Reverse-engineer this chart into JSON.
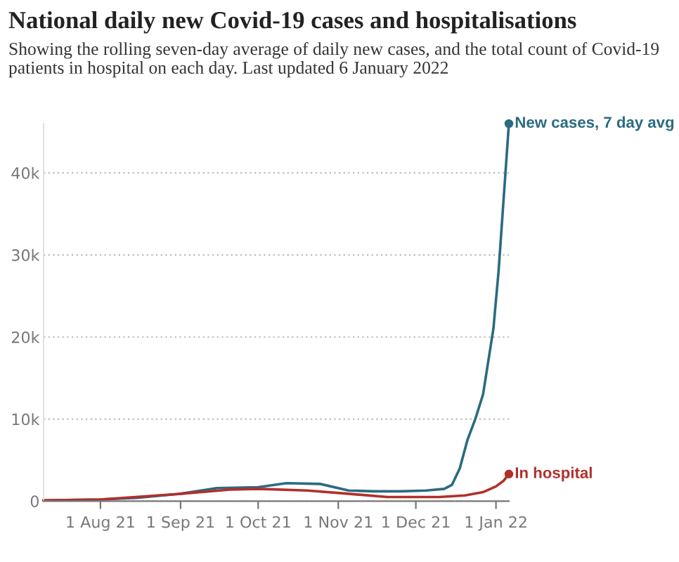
{
  "chart_data": {
    "type": "line",
    "title": "National daily new Covid-19 cases and hospitalisations",
    "subtitle": "Showing the rolling seven-day average of daily new cases, and the total count of Covid-19 patients in hospital on each day. Last updated 6 January 2022",
    "series": [
      {
        "name": "New cases, 7 day avg",
        "color": "#2b6b80",
        "x": [
          "2021-07-10",
          "2021-08-01",
          "2021-08-15",
          "2021-09-01",
          "2021-09-15",
          "2021-10-01",
          "2021-10-12",
          "2021-10-25",
          "2021-11-05",
          "2021-11-15",
          "2021-11-25",
          "2021-12-05",
          "2021-12-12",
          "2021-12-15",
          "2021-12-18",
          "2021-12-21",
          "2021-12-24",
          "2021-12-27",
          "2021-12-29",
          "2021-12-31",
          "2022-01-02",
          "2022-01-04",
          "2022-01-06"
        ],
        "values": [
          100,
          200,
          400,
          900,
          1600,
          1700,
          2200,
          2100,
          1300,
          1200,
          1200,
          1300,
          1500,
          2000,
          4000,
          7500,
          10000,
          13000,
          17000,
          21000,
          28000,
          37000,
          46000
        ]
      },
      {
        "name": "In hospital",
        "color": "#b0302c",
        "x": [
          "2021-07-10",
          "2021-08-01",
          "2021-09-01",
          "2021-09-20",
          "2021-10-01",
          "2021-10-20",
          "2021-11-05",
          "2021-11-20",
          "2021-12-10",
          "2021-12-20",
          "2021-12-27",
          "2022-01-01",
          "2022-01-04",
          "2022-01-06"
        ],
        "values": [
          100,
          200,
          900,
          1400,
          1500,
          1300,
          900,
          500,
          500,
          700,
          1100,
          1800,
          2500,
          3300
        ]
      }
    ],
    "xlim": [
      "2021-07-10",
      "2022-01-06"
    ],
    "xticks": [
      {
        "value": "2021-08-01",
        "label": "1 Aug 21"
      },
      {
        "value": "2021-09-01",
        "label": "1 Sep 21"
      },
      {
        "value": "2021-10-01",
        "label": "1 Oct 21"
      },
      {
        "value": "2021-11-01",
        "label": "1 Nov 21"
      },
      {
        "value": "2021-12-01",
        "label": "1 Dec 21"
      },
      {
        "value": "2022-01-01",
        "label": "1 Jan 22"
      }
    ],
    "ylim": [
      0,
      46000
    ],
    "yticks": [
      0,
      {
        "value": 10000,
        "label": "10k"
      },
      {
        "value": 20000,
        "label": "20k"
      },
      {
        "value": 30000,
        "label": "30k"
      },
      {
        "value": 40000,
        "label": "40k"
      }
    ],
    "grid": "y",
    "legend": false
  }
}
